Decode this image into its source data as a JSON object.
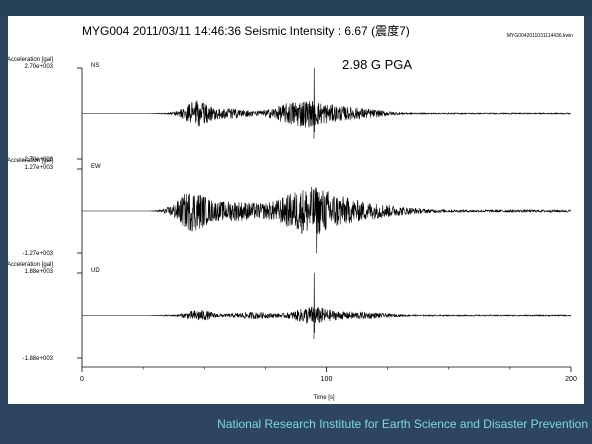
{
  "footer": {
    "text": "National Research Institute for Earth Science and Disaster Prevention"
  },
  "chart_data": {
    "type": "line",
    "title": "MYG004  2011/03/11 14:46:36  Seismic Intensity : 6.67    (震度7)",
    "file_label": "MYG0042011031114436.kwin",
    "annotation": "2.98 G PGA",
    "xlabel": "Time [s]",
    "xlim": [
      0,
      200
    ],
    "x_ticks": [
      0,
      100,
      200
    ],
    "x_tick_labels": [
      "0",
      "100",
      "200"
    ],
    "signal_start_s": 28,
    "panels": [
      {
        "component": "NS",
        "ylabel": "Acceleration [gal]",
        "ylim": [
          -2700,
          2700
        ],
        "y_top_label": "2.70e+003",
        "y_bottom_label": "-2.70e+003",
        "peak_time_s": 95,
        "peak_value": 2700,
        "bursts": [
          {
            "center_s": 47,
            "width_s": 6,
            "amplitude": 700
          },
          {
            "center_s": 60,
            "width_s": 9,
            "amplitude": 250
          },
          {
            "center_s": 90,
            "width_s": 12,
            "amplitude": 750
          },
          {
            "center_s": 110,
            "width_s": 14,
            "amplitude": 300
          }
        ],
        "noise": 40
      },
      {
        "component": "EW",
        "ylabel": "Acceleration [gal]",
        "ylim": [
          -1270,
          1270
        ],
        "y_top_label": "1.27e+003",
        "y_bottom_label": "-1.27e+003",
        "peak_time_s": 96,
        "peak_value": -1270,
        "bursts": [
          {
            "center_s": 45,
            "width_s": 7,
            "amplitude": 550
          },
          {
            "center_s": 62,
            "width_s": 12,
            "amplitude": 260
          },
          {
            "center_s": 93,
            "width_s": 14,
            "amplitude": 650
          },
          {
            "center_s": 115,
            "width_s": 18,
            "amplitude": 200
          }
        ],
        "noise": 40
      },
      {
        "component": "UD",
        "ylabel": "Acceleration [gal]",
        "ylim": [
          -1880,
          1880
        ],
        "y_top_label": "1.88e+003",
        "y_bottom_label": "-1.88e+003",
        "peak_time_s": 95,
        "peak_value": 1880,
        "bursts": [
          {
            "center_s": 48,
            "width_s": 6,
            "amplitude": 220
          },
          {
            "center_s": 70,
            "width_s": 10,
            "amplitude": 120
          },
          {
            "center_s": 94,
            "width_s": 8,
            "amplitude": 350
          },
          {
            "center_s": 112,
            "width_s": 14,
            "amplitude": 130
          }
        ],
        "noise": 30
      }
    ],
    "colors": {
      "trace": "#000000",
      "panel_bg": "#ffffff",
      "page_bg": "#2d4560",
      "footer_text": "#7fd6e6"
    }
  }
}
